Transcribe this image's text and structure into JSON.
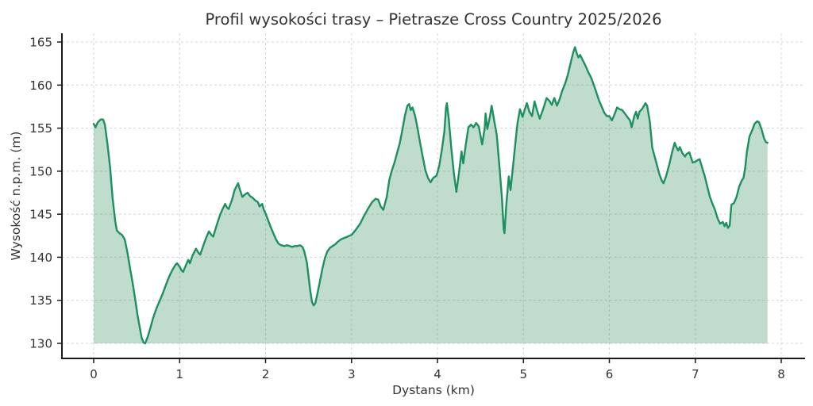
{
  "figure": {
    "background": "#ffffff"
  },
  "colors": {
    "line": "#1e9060",
    "fill": "rgba(46,139,87,0.30)",
    "grid": "#d4d4d4",
    "spine": "#1a1a1a",
    "text": "#333333"
  },
  "chart_data": {
    "type": "area",
    "title": "Profil wysokości trasy – Pietrasze Cross Country 2025/2026",
    "xlabel": "Dystans (km)",
    "ylabel": "Wysokość n.p.m. (m)",
    "x_ticks": [
      0,
      1,
      2,
      3,
      4,
      5,
      6,
      7,
      8
    ],
    "y_ticks": [
      130,
      135,
      140,
      145,
      150,
      155,
      160,
      165
    ],
    "xlim": [
      -0.37,
      8.28
    ],
    "ylim": [
      128.25,
      166.0
    ],
    "grid": true,
    "grid_style": "dashed",
    "legend": "none",
    "fill_baseline": 130,
    "points": [
      [
        0.0,
        155.5
      ],
      [
        0.02,
        155.1
      ],
      [
        0.05,
        155.7
      ],
      [
        0.08,
        156.0
      ],
      [
        0.11,
        156.0
      ],
      [
        0.13,
        155.4
      ],
      [
        0.16,
        153.2
      ],
      [
        0.19,
        150.5
      ],
      [
        0.22,
        146.9
      ],
      [
        0.25,
        144.2
      ],
      [
        0.27,
        143.1
      ],
      [
        0.3,
        142.8
      ],
      [
        0.33,
        142.6
      ],
      [
        0.36,
        142.1
      ],
      [
        0.39,
        140.7
      ],
      [
        0.42,
        138.9
      ],
      [
        0.45,
        137.2
      ],
      [
        0.48,
        135.3
      ],
      [
        0.51,
        133.3
      ],
      [
        0.54,
        131.6
      ],
      [
        0.56,
        130.6
      ],
      [
        0.58,
        130.1
      ],
      [
        0.6,
        130.0
      ],
      [
        0.63,
        130.8
      ],
      [
        0.66,
        131.8
      ],
      [
        0.69,
        132.9
      ],
      [
        0.71,
        133.5
      ],
      [
        0.74,
        134.3
      ],
      [
        0.77,
        135.0
      ],
      [
        0.8,
        135.7
      ],
      [
        0.83,
        136.5
      ],
      [
        0.86,
        137.3
      ],
      [
        0.89,
        138.0
      ],
      [
        0.92,
        138.6
      ],
      [
        0.95,
        139.1
      ],
      [
        0.97,
        139.3
      ],
      [
        1.0,
        138.9
      ],
      [
        1.02,
        138.5
      ],
      [
        1.04,
        138.3
      ],
      [
        1.07,
        139.0
      ],
      [
        1.1,
        139.7
      ],
      [
        1.12,
        139.3
      ],
      [
        1.15,
        140.2
      ],
      [
        1.19,
        141.0
      ],
      [
        1.22,
        140.5
      ],
      [
        1.24,
        140.3
      ],
      [
        1.28,
        141.5
      ],
      [
        1.31,
        142.3
      ],
      [
        1.34,
        143.0
      ],
      [
        1.37,
        142.6
      ],
      [
        1.39,
        142.4
      ],
      [
        1.43,
        143.7
      ],
      [
        1.47,
        144.9
      ],
      [
        1.5,
        145.6
      ],
      [
        1.53,
        146.2
      ],
      [
        1.55,
        145.8
      ],
      [
        1.57,
        145.6
      ],
      [
        1.61,
        146.7
      ],
      [
        1.64,
        147.8
      ],
      [
        1.68,
        148.6
      ],
      [
        1.7,
        147.9
      ],
      [
        1.73,
        147.0
      ],
      [
        1.76,
        147.3
      ],
      [
        1.79,
        147.5
      ],
      [
        1.82,
        147.1
      ],
      [
        1.85,
        146.9
      ],
      [
        1.88,
        146.6
      ],
      [
        1.91,
        146.4
      ],
      [
        1.93,
        145.9
      ],
      [
        1.96,
        146.2
      ],
      [
        1.98,
        145.5
      ],
      [
        2.0,
        145.1
      ],
      [
        2.03,
        144.3
      ],
      [
        2.06,
        143.5
      ],
      [
        2.09,
        142.8
      ],
      [
        2.12,
        142.1
      ],
      [
        2.15,
        141.6
      ],
      [
        2.18,
        141.4
      ],
      [
        2.22,
        141.3
      ],
      [
        2.25,
        141.4
      ],
      [
        2.28,
        141.3
      ],
      [
        2.31,
        141.2
      ],
      [
        2.34,
        141.3
      ],
      [
        2.37,
        141.3
      ],
      [
        2.4,
        141.4
      ],
      [
        2.43,
        141.2
      ],
      [
        2.45,
        140.7
      ],
      [
        2.48,
        139.4
      ],
      [
        2.5,
        137.8
      ],
      [
        2.52,
        136.1
      ],
      [
        2.54,
        134.8
      ],
      [
        2.56,
        134.4
      ],
      [
        2.58,
        134.7
      ],
      [
        2.6,
        135.6
      ],
      [
        2.63,
        137.1
      ],
      [
        2.66,
        138.6
      ],
      [
        2.69,
        139.9
      ],
      [
        2.72,
        140.7
      ],
      [
        2.75,
        141.1
      ],
      [
        2.78,
        141.3
      ],
      [
        2.81,
        141.5
      ],
      [
        2.84,
        141.8
      ],
      [
        2.88,
        142.1
      ],
      [
        2.93,
        142.3
      ],
      [
        3.0,
        142.6
      ],
      [
        3.05,
        143.2
      ],
      [
        3.1,
        143.9
      ],
      [
        3.14,
        144.7
      ],
      [
        3.19,
        145.6
      ],
      [
        3.24,
        146.4
      ],
      [
        3.28,
        146.8
      ],
      [
        3.31,
        146.7
      ],
      [
        3.34,
        145.9
      ],
      [
        3.37,
        145.5
      ],
      [
        3.41,
        147.0
      ],
      [
        3.44,
        149.0
      ],
      [
        3.47,
        150.1
      ],
      [
        3.5,
        151.0
      ],
      [
        3.53,
        152.1
      ],
      [
        3.56,
        153.2
      ],
      [
        3.59,
        154.7
      ],
      [
        3.62,
        156.4
      ],
      [
        3.65,
        157.6
      ],
      [
        3.67,
        157.8
      ],
      [
        3.69,
        157.1
      ],
      [
        3.71,
        157.4
      ],
      [
        3.74,
        156.4
      ],
      [
        3.77,
        154.9
      ],
      [
        3.8,
        153.2
      ],
      [
        3.83,
        151.6
      ],
      [
        3.86,
        150.1
      ],
      [
        3.89,
        149.2
      ],
      [
        3.92,
        148.7
      ],
      [
        3.95,
        149.2
      ],
      [
        3.99,
        149.5
      ],
      [
        4.02,
        150.6
      ],
      [
        4.05,
        152.4
      ],
      [
        4.08,
        154.6
      ],
      [
        4.1,
        157.4
      ],
      [
        4.11,
        157.9
      ],
      [
        4.13,
        156.2
      ],
      [
        4.16,
        152.8
      ],
      [
        4.19,
        149.8
      ],
      [
        4.22,
        147.6
      ],
      [
        4.25,
        149.8
      ],
      [
        4.28,
        152.3
      ],
      [
        4.3,
        150.9
      ],
      [
        4.33,
        153.1
      ],
      [
        4.36,
        155.1
      ],
      [
        4.39,
        155.4
      ],
      [
        4.42,
        155.1
      ],
      [
        4.45,
        155.6
      ],
      [
        4.48,
        155.2
      ],
      [
        4.52,
        153.1
      ],
      [
        4.55,
        155.0
      ],
      [
        4.56,
        156.7
      ],
      [
        4.58,
        154.9
      ],
      [
        4.61,
        156.3
      ],
      [
        4.63,
        157.6
      ],
      [
        4.66,
        155.9
      ],
      [
        4.69,
        154.2
      ],
      [
        4.72,
        150.7
      ],
      [
        4.75,
        146.9
      ],
      [
        4.77,
        143.3
      ],
      [
        4.78,
        142.8
      ],
      [
        4.8,
        146.0
      ],
      [
        4.83,
        149.4
      ],
      [
        4.85,
        147.8
      ],
      [
        4.88,
        150.7
      ],
      [
        4.91,
        153.6
      ],
      [
        4.93,
        155.5
      ],
      [
        4.96,
        157.2
      ],
      [
        4.99,
        156.3
      ],
      [
        5.02,
        157.3
      ],
      [
        5.04,
        157.9
      ],
      [
        5.07,
        156.9
      ],
      [
        5.1,
        156.4
      ],
      [
        5.13,
        158.1
      ],
      [
        5.16,
        157.0
      ],
      [
        5.19,
        156.1
      ],
      [
        5.23,
        157.2
      ],
      [
        5.27,
        158.5
      ],
      [
        5.3,
        158.2
      ],
      [
        5.33,
        157.7
      ],
      [
        5.36,
        158.5
      ],
      [
        5.39,
        157.6
      ],
      [
        5.42,
        158.3
      ],
      [
        5.45,
        159.3
      ],
      [
        5.49,
        160.3
      ],
      [
        5.52,
        161.3
      ],
      [
        5.55,
        162.6
      ],
      [
        5.58,
        163.8
      ],
      [
        5.6,
        164.4
      ],
      [
        5.62,
        163.7
      ],
      [
        5.64,
        163.2
      ],
      [
        5.66,
        163.5
      ],
      [
        5.69,
        162.9
      ],
      [
        5.72,
        162.3
      ],
      [
        5.76,
        161.4
      ],
      [
        5.79,
        160.8
      ],
      [
        5.82,
        160.0
      ],
      [
        5.85,
        159.1
      ],
      [
        5.88,
        158.2
      ],
      [
        5.91,
        157.5
      ],
      [
        5.94,
        156.8
      ],
      [
        5.97,
        156.4
      ],
      [
        6.0,
        156.4
      ],
      [
        6.03,
        155.9
      ],
      [
        6.06,
        156.6
      ],
      [
        6.09,
        157.4
      ],
      [
        6.12,
        157.2
      ],
      [
        6.15,
        157.1
      ],
      [
        6.18,
        156.7
      ],
      [
        6.21,
        156.3
      ],
      [
        6.24,
        155.9
      ],
      [
        6.26,
        155.1
      ],
      [
        6.29,
        156.4
      ],
      [
        6.31,
        156.9
      ],
      [
        6.33,
        156.1
      ],
      [
        6.35,
        156.9
      ],
      [
        6.38,
        157.2
      ],
      [
        6.42,
        157.9
      ],
      [
        6.44,
        157.6
      ],
      [
        6.47,
        155.8
      ],
      [
        6.5,
        152.7
      ],
      [
        6.54,
        151.2
      ],
      [
        6.58,
        149.7
      ],
      [
        6.61,
        148.9
      ],
      [
        6.63,
        148.6
      ],
      [
        6.66,
        149.4
      ],
      [
        6.7,
        150.9
      ],
      [
        6.73,
        152.2
      ],
      [
        6.76,
        153.3
      ],
      [
        6.78,
        152.8
      ],
      [
        6.8,
        152.4
      ],
      [
        6.82,
        152.8
      ],
      [
        6.85,
        152.1
      ],
      [
        6.88,
        151.7
      ],
      [
        6.9,
        152.0
      ],
      [
        6.93,
        152.2
      ],
      [
        6.95,
        151.6
      ],
      [
        6.97,
        151.0
      ],
      [
        7.0,
        151.1
      ],
      [
        7.03,
        151.3
      ],
      [
        7.05,
        151.4
      ],
      [
        7.08,
        150.4
      ],
      [
        7.11,
        149.4
      ],
      [
        7.14,
        148.2
      ],
      [
        7.17,
        147.0
      ],
      [
        7.2,
        146.2
      ],
      [
        7.23,
        145.5
      ],
      [
        7.26,
        144.5
      ],
      [
        7.29,
        143.9
      ],
      [
        7.32,
        144.1
      ],
      [
        7.34,
        143.6
      ],
      [
        7.36,
        144.0
      ],
      [
        7.38,
        143.4
      ],
      [
        7.4,
        143.7
      ],
      [
        7.42,
        146.1
      ],
      [
        7.45,
        146.3
      ],
      [
        7.48,
        147.0
      ],
      [
        7.51,
        148.2
      ],
      [
        7.54,
        148.9
      ],
      [
        7.56,
        149.2
      ],
      [
        7.58,
        150.3
      ],
      [
        7.6,
        152.2
      ],
      [
        7.63,
        154.0
      ],
      [
        7.66,
        154.7
      ],
      [
        7.69,
        155.5
      ],
      [
        7.72,
        155.8
      ],
      [
        7.74,
        155.7
      ],
      [
        7.77,
        154.9
      ],
      [
        7.8,
        153.8
      ],
      [
        7.82,
        153.4
      ],
      [
        7.84,
        153.3
      ]
    ]
  }
}
